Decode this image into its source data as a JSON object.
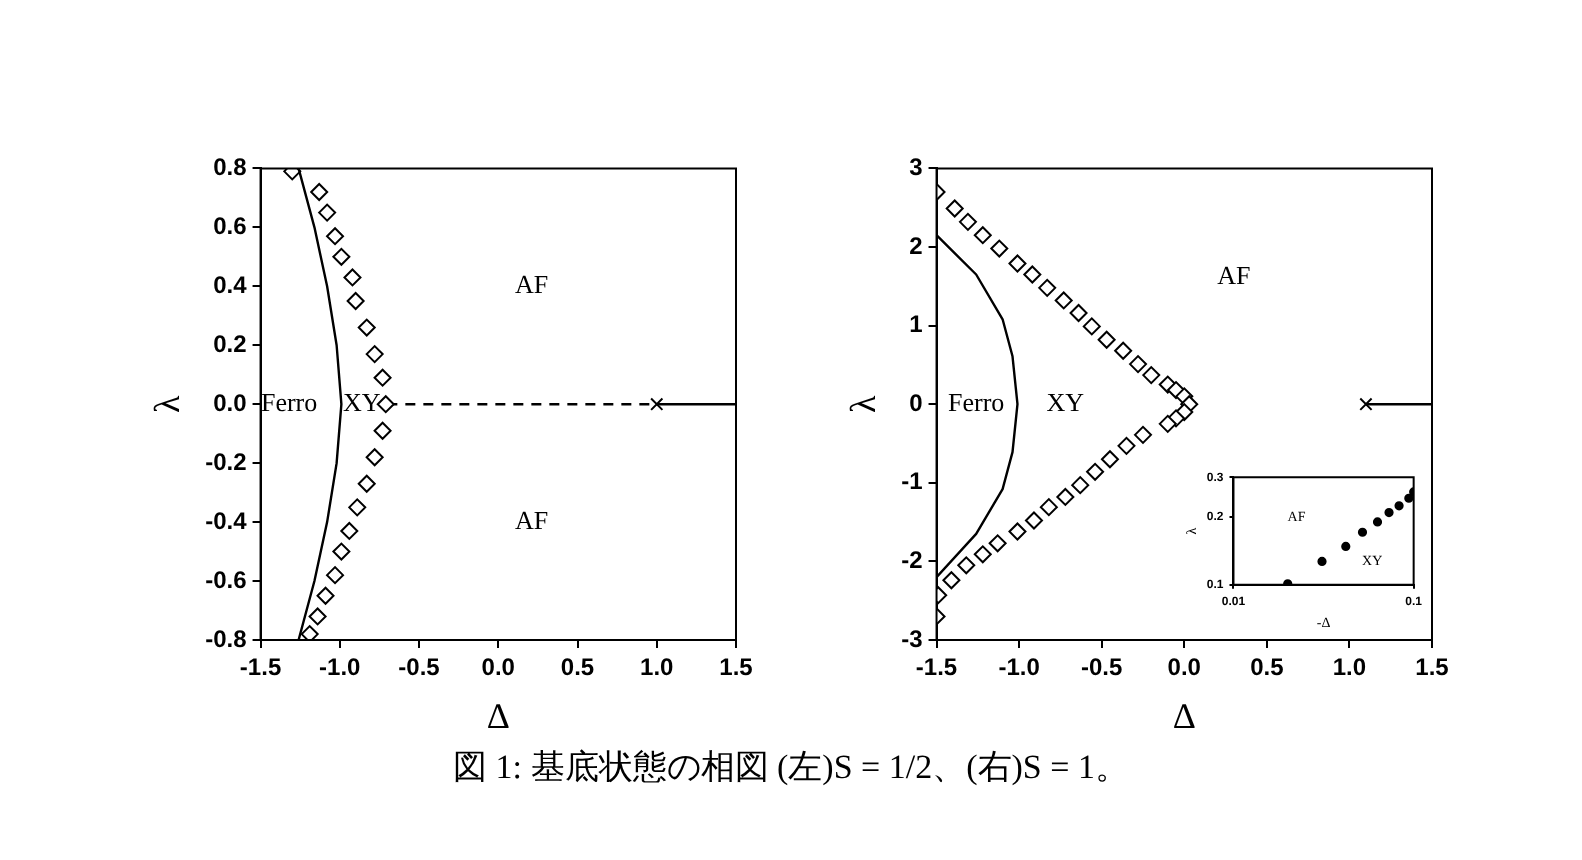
{
  "chart_data": [
    {
      "type": "scatter",
      "xlabel": "Δ",
      "ylabel": "λ",
      "xlim": [
        -1.5,
        1.5
      ],
      "ylim": [
        -0.8,
        0.8
      ],
      "xticks": [
        {
          "value": -1.5,
          "label": "-1.5"
        },
        {
          "value": -1,
          "label": "-1.0"
        },
        {
          "value": -0.5,
          "label": "-0.5"
        },
        {
          "value": 0,
          "label": "0.0"
        },
        {
          "value": 0.5,
          "label": "0.5"
        },
        {
          "value": 1,
          "label": "1.0"
        },
        {
          "value": 1.5,
          "label": "1.5"
        }
      ],
      "yticks": [
        {
          "value": -0.8,
          "label": "-0.8"
        },
        {
          "value": -0.6,
          "label": "-0.6"
        },
        {
          "value": -0.4,
          "label": "-0.4"
        },
        {
          "value": -0.2,
          "label": "-0.2"
        },
        {
          "value": 0,
          "label": "0.0"
        },
        {
          "value": 0.2,
          "label": "0.2"
        },
        {
          "value": 0.4,
          "label": "0.4"
        },
        {
          "value": 0.6,
          "label": "0.6"
        },
        {
          "value": 0.8,
          "label": "0.8"
        }
      ],
      "grid": false,
      "legend": false,
      "series": [
        {
          "type": "line",
          "color": "#000000",
          "marker": "none",
          "line_style": "solid",
          "x": [
            -1.26,
            -1.16,
            -1.08,
            -1.02,
            -0.99,
            -1.02,
            -1.08,
            -1.16,
            -1.26
          ],
          "values": [
            0.8,
            0.6,
            0.4,
            0.2,
            0,
            -0.2,
            -0.4,
            -0.6,
            -0.8
          ]
        },
        {
          "type": "scatter",
          "color": "#000000",
          "marker": "diamond",
          "x": [
            -1.3,
            -1.13,
            -1.08,
            -1.03,
            -0.99,
            -0.92,
            -0.9,
            -0.83,
            -0.78,
            -0.73,
            -0.71,
            -0.73,
            -0.78,
            -0.83,
            -0.89,
            -0.94,
            -0.99,
            -1.03,
            -1.09,
            -1.14,
            -1.19
          ],
          "values": [
            0.79,
            0.72,
            0.65,
            0.57,
            0.5,
            0.43,
            0.35,
            0.26,
            0.17,
            0.09,
            0,
            -0.09,
            -0.18,
            -0.27,
            -0.35,
            -0.43,
            -0.5,
            -0.58,
            -0.65,
            -0.72,
            -0.78
          ]
        },
        {
          "type": "line",
          "color": "#000000",
          "marker": "none",
          "line_style": "dashed",
          "x": [
            -0.7,
            1.0
          ],
          "values": [
            0,
            0
          ]
        },
        {
          "type": "line",
          "color": "#000000",
          "marker": "none",
          "line_style": "solid",
          "x": [
            1.0,
            1.5
          ],
          "values": [
            0,
            0
          ]
        },
        {
          "type": "scatter",
          "color": "#000000",
          "marker": "cross",
          "x": [
            1.0
          ],
          "values": [
            0
          ]
        }
      ],
      "annotations": [
        "Ferro",
        "XY",
        "AF",
        "AF",
        "図 1: 基底状態の相図 (左)S = 1/2、(右)S = 1。"
      ]
    },
    {
      "type": "scatter",
      "xlabel": "Δ",
      "ylabel": "λ",
      "xlim": [
        -1.5,
        1.5
      ],
      "ylim": [
        -3,
        3
      ],
      "xticks": [
        {
          "value": -1.5,
          "label": "-1.5"
        },
        {
          "value": -1,
          "label": "-1.0"
        },
        {
          "value": -0.5,
          "label": "-0.5"
        },
        {
          "value": 0,
          "label": "0.0"
        },
        {
          "value": 0.5,
          "label": "0.5"
        },
        {
          "value": 1,
          "label": "1.0"
        },
        {
          "value": 1.5,
          "label": "1.5"
        }
      ],
      "yticks": [
        -3,
        -2,
        -1,
        0,
        1,
        2,
        3
      ],
      "grid": false,
      "legend": false,
      "series": [
        {
          "type": "line",
          "color": "#000000",
          "marker": "none",
          "line_style": "solid",
          "x": [
            -1.5,
            -1.26,
            -1.1,
            -1.04,
            -1.01,
            -1.04,
            -1.1,
            -1.26,
            -1.5
          ],
          "values": [
            2.15,
            1.65,
            1.08,
            0.61,
            0,
            -0.61,
            -1.08,
            -1.65,
            -2.2
          ]
        },
        {
          "type": "scatter",
          "color": "#000000",
          "marker": "diamond",
          "x": [
            -1.5,
            -1.39,
            -1.31,
            -1.22,
            -1.12,
            -1.01,
            -0.92,
            -0.83,
            -0.73,
            -0.64,
            -0.56,
            -0.47,
            -0.37,
            -0.28,
            -0.2,
            -0.1,
            -0.05,
            0,
            0.03,
            0,
            -0.05,
            -0.1,
            -0.25,
            -0.35,
            -0.45,
            -0.54,
            -0.63,
            -0.72,
            -0.82,
            -0.91,
            -1.01,
            -1.13,
            -1.22,
            -1.32,
            -1.41,
            -1.49,
            -1.5
          ],
          "values": [
            2.7,
            2.49,
            2.32,
            2.15,
            1.98,
            1.79,
            1.65,
            1.48,
            1.32,
            1.16,
            0.99,
            0.82,
            0.68,
            0.51,
            0.37,
            0.25,
            0.18,
            0.1,
            0,
            -0.1,
            -0.18,
            -0.25,
            -0.39,
            -0.53,
            -0.7,
            -0.86,
            -1.03,
            -1.18,
            -1.31,
            -1.48,
            -1.62,
            -1.77,
            -1.91,
            -2.05,
            -2.24,
            -2.43,
            -2.7
          ]
        },
        {
          "type": "line",
          "color": "#000000",
          "marker": "none",
          "line_style": "solid",
          "x": [
            1.1,
            1.5
          ],
          "values": [
            0,
            0
          ]
        },
        {
          "type": "scatter",
          "color": "#000000",
          "marker": "cross",
          "x": [
            1.1
          ],
          "values": [
            0
          ]
        }
      ],
      "annotations": [
        "Ferro",
        "XY",
        "AF"
      ]
    },
    {
      "type": "scatter",
      "xlabel": "-Δ",
      "ylabel": "λ",
      "log": "xy",
      "xlim": [
        0.01,
        0.1
      ],
      "ylim": [
        0.1,
        0.3
      ],
      "xticks": [
        0.01,
        0.1
      ],
      "yticks": [
        0.1,
        0.2,
        0.3
      ],
      "grid": false,
      "legend": false,
      "series": [
        {
          "type": "scatter",
          "color": "#000000",
          "marker": "circle",
          "x": [
            0.02,
            0.031,
            0.042,
            0.052,
            0.063,
            0.073,
            0.083,
            0.094,
            0.1
          ],
          "values": [
            0.101,
            0.127,
            0.148,
            0.171,
            0.19,
            0.209,
            0.224,
            0.242,
            0.258
          ]
        }
      ],
      "annotations": [
        "AF",
        "XY"
      ]
    }
  ]
}
